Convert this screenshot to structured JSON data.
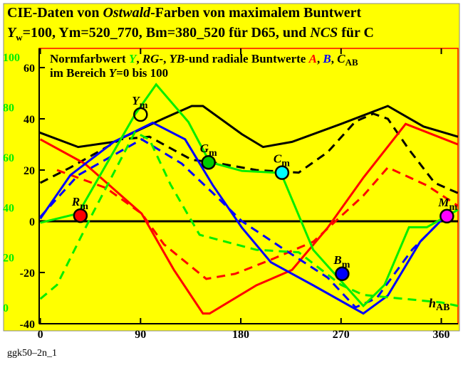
{
  "chart_data": {
    "type": "line",
    "title_line1": [
      "CIE-Daten von ",
      "Ostwald",
      "-Farben von maximalem Buntwert"
    ],
    "title_line2": [
      "Y",
      "w",
      "=100, Ym=520_770, Bm=380_520 für D65, und ",
      "NCS",
      " für C"
    ],
    "legend_line1": [
      "Normfarbwert ",
      "Y",
      ", ",
      "RG-",
      ", ",
      "YB-",
      "und radiale Buntwerte ",
      "A",
      ", ",
      "B",
      ", ",
      "C",
      "AB"
    ],
    "legend_line2": [
      "im Bereich ",
      "Y",
      "=0 bis 100"
    ],
    "x_label": [
      "h",
      "AB"
    ],
    "footer": "ggk50–2n_1",
    "xlim": [
      -1,
      375
    ],
    "xticks": [
      0,
      90,
      180,
      270,
      360
    ],
    "ylim": [
      -40,
      67.5
    ],
    "yticks": [
      -40,
      -20,
      0,
      20,
      40,
      60
    ],
    "y2lim": [
      -6.5,
      103.4
    ],
    "y2ticks": [
      0,
      20,
      40,
      60,
      80,
      100
    ],
    "series": [
      {
        "color": "#000000",
        "dash": false,
        "axis": "y",
        "x": [
          -1,
          34,
          66,
          110,
          136,
          146,
          181,
          200,
          226,
          270,
          312,
          344,
          375
        ],
        "values": [
          34.7,
          29,
          31,
          40,
          45,
          45,
          34,
          29,
          31,
          38,
          45,
          37,
          33
        ]
      },
      {
        "color": "#000000",
        "dash": true,
        "axis": "y",
        "x": [
          0,
          27,
          72,
          98,
          136,
          155,
          194,
          232,
          258,
          283,
          299,
          312,
          331,
          354,
          375
        ],
        "values": [
          15,
          21,
          32,
          33,
          24,
          23,
          20,
          19,
          27,
          39,
          42,
          40,
          28,
          15,
          11
        ]
      },
      {
        "color": "#ff0000",
        "dash": false,
        "axis": "y",
        "x": [
          0,
          40,
          91,
          120,
          146,
          152,
          194,
          226,
          258,
          290,
          328,
          375
        ],
        "values": [
          32,
          22.5,
          3,
          -19,
          -36,
          -36,
          -25,
          -19,
          -2.5,
          17,
          38,
          30
        ]
      },
      {
        "color": "#ff0000",
        "dash": true,
        "axis": "y",
        "x": [
          15,
          59,
          91,
          111,
          149,
          175,
          207,
          245,
          290,
          312,
          347,
          375
        ],
        "values": [
          20,
          13,
          3,
          -9,
          -22.5,
          -20.5,
          -15,
          -8,
          10,
          21,
          14,
          6
        ]
      },
      {
        "color": "#0000ff",
        "dash": false,
        "axis": "y",
        "x": [
          0,
          27,
          66,
          101,
          130,
          155,
          181,
          207,
          245,
          290,
          312,
          341,
          363
        ],
        "values": [
          1,
          18,
          31,
          38.5,
          32,
          14,
          -2.5,
          -16,
          -25,
          -36,
          -29,
          -8,
          1.7
        ]
      },
      {
        "color": "#0000ff",
        "dash": true,
        "axis": "y",
        "x": [
          0,
          34,
          91,
          127,
          155,
          181,
          219,
          258,
          283,
          302,
          334,
          363
        ],
        "values": [
          1.7,
          18,
          32,
          22.5,
          11,
          0,
          -11,
          -22,
          -33.6,
          -30,
          -11,
          1.7
        ]
      },
      {
        "color": "#00ee00",
        "dash": false,
        "axis": "y2",
        "x": [
          0,
          34,
          85,
          104,
          133,
          152,
          181,
          216,
          245,
          290,
          309,
          331,
          347,
          363,
          375
        ],
        "values": [
          33.8,
          37.5,
          77,
          89,
          74,
          58,
          54.5,
          53.7,
          23,
          0.6,
          9,
          32,
          32,
          36,
          39
        ]
      },
      {
        "color": "#00ee00",
        "dash": true,
        "axis": "y2",
        "x": [
          0,
          15,
          47,
          85,
          98,
          117,
          143,
          194,
          232,
          270,
          290,
          360,
          375
        ],
        "values": [
          3.4,
          9,
          37.5,
          70,
          67,
          49,
          29,
          23,
          22,
          9,
          5,
          2,
          0.6
        ]
      }
    ],
    "markers": [
      {
        "label": "R",
        "sub": "m",
        "x": 36,
        "y": 2.2,
        "axis": "y",
        "color": "#ff0000",
        "filled": true
      },
      {
        "label": "Y",
        "sub": "m",
        "x": 90,
        "y": 77,
        "axis": "y2",
        "color": "#000000",
        "filled": false
      },
      {
        "label": "G",
        "sub": "m",
        "x": 151,
        "y": 23,
        "axis": "y",
        "color": "#00cc00",
        "filled": true
      },
      {
        "label": "C",
        "sub": "m",
        "x": 217,
        "y": 19,
        "axis": "y",
        "color": "#00ffff",
        "filled": true
      },
      {
        "label": "B",
        "sub": "m",
        "x": 271,
        "y": -20.5,
        "axis": "y",
        "color": "#0000ff",
        "filled": true
      },
      {
        "label": "M",
        "sub": "m",
        "x": 365,
        "y": 2,
        "axis": "y",
        "color": "#ff00ff",
        "filled": true
      }
    ]
  }
}
